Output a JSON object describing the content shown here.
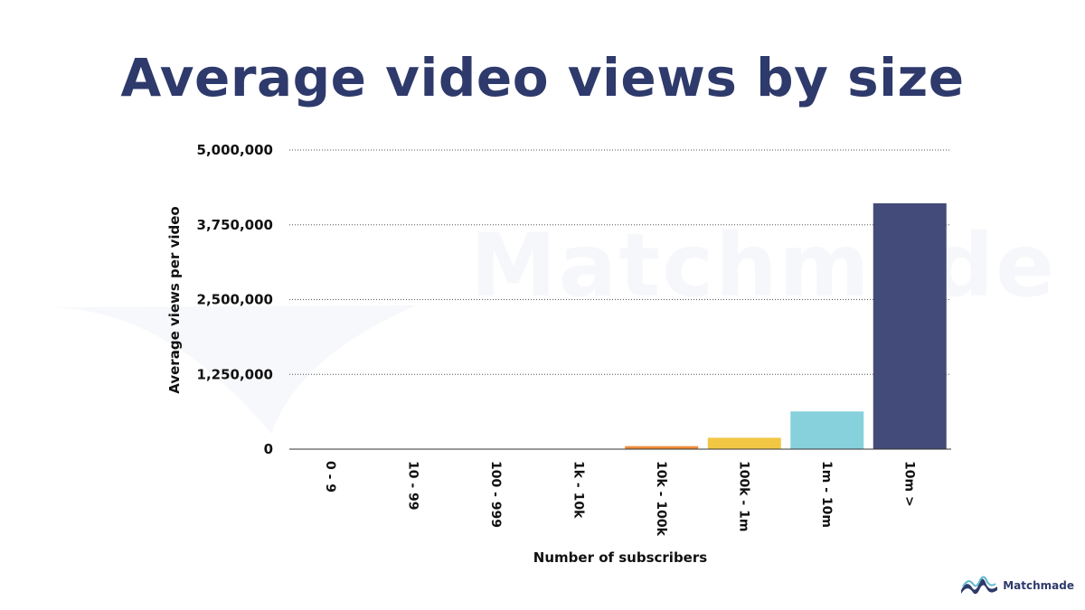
{
  "chart_data": {
    "type": "bar",
    "title": "Average video views by size",
    "xlabel": "Number of subscribers",
    "ylabel": "Average views per video",
    "categories": [
      "0 - 9",
      "10 - 99",
      "100 - 999",
      "1k - 10k",
      "10k - 100k",
      "100k - 1m",
      "1m - 10m",
      "10m >"
    ],
    "values": [
      0,
      0,
      0,
      500,
      50000,
      190000,
      630000,
      4110000
    ],
    "colors": [
      "#ef8c3a",
      "#ef8c3a",
      "#ef8c3a",
      "#ef8c3a",
      "#ef8c3a",
      "#f2c744",
      "#86d1dc",
      "#434b7a"
    ],
    "ylim": [
      0,
      5000000
    ],
    "yticks": [
      0,
      1250000,
      2500000,
      3750000,
      5000000
    ],
    "ytick_labels": [
      "0",
      "1,250,000",
      "2,500,000",
      "3,750,000",
      "5,000,000"
    ],
    "grid": true,
    "grid_style": "dotted"
  },
  "watermark": {
    "text": "Matchmade"
  },
  "brand": {
    "name": "Matchmade",
    "color": "#2e3a6b",
    "accent": "#5fb8cf"
  }
}
